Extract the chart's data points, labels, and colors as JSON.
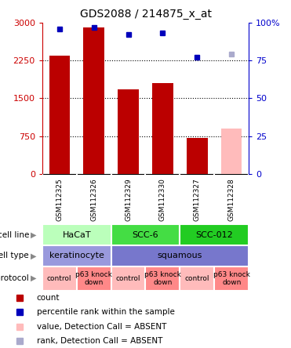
{
  "title": "GDS2088 / 214875_x_at",
  "samples": [
    "GSM112325",
    "GSM112326",
    "GSM112329",
    "GSM112330",
    "GSM112327",
    "GSM112328"
  ],
  "counts": [
    2350,
    2900,
    1680,
    1800,
    720,
    null
  ],
  "percentile_ranks": [
    96,
    97,
    92,
    93,
    77,
    null
  ],
  "absent_value": [
    null,
    null,
    null,
    null,
    null,
    900
  ],
  "absent_rank": [
    null,
    null,
    null,
    null,
    null,
    79
  ],
  "absent_flags": [
    false,
    false,
    false,
    false,
    false,
    true
  ],
  "ylim_left": [
    0,
    3000
  ],
  "ylim_right": [
    0,
    100
  ],
  "yticks_left": [
    0,
    750,
    1500,
    2250,
    3000
  ],
  "yticks_right": [
    0,
    25,
    50,
    75,
    100
  ],
  "cell_line_groups": [
    {
      "label": "HaCaT",
      "start": 0,
      "end": 2,
      "color": "#bbffbb"
    },
    {
      "label": "SCC-6",
      "start": 2,
      "end": 4,
      "color": "#44dd44"
    },
    {
      "label": "SCC-012",
      "start": 4,
      "end": 6,
      "color": "#22cc22"
    }
  ],
  "cell_type_groups": [
    {
      "label": "keratinocyte",
      "start": 0,
      "end": 2,
      "color": "#9999dd"
    },
    {
      "label": "squamous",
      "start": 2,
      "end": 6,
      "color": "#7777cc"
    }
  ],
  "protocol_groups": [
    {
      "label": "control",
      "start": 0,
      "end": 1,
      "color": "#ffbbbb"
    },
    {
      "label": "p63 knock\ndown",
      "start": 1,
      "end": 2,
      "color": "#ff8888"
    },
    {
      "label": "control",
      "start": 2,
      "end": 3,
      "color": "#ffbbbb"
    },
    {
      "label": "p63 knock\ndown",
      "start": 3,
      "end": 4,
      "color": "#ff8888"
    },
    {
      "label": "control",
      "start": 4,
      "end": 5,
      "color": "#ffbbbb"
    },
    {
      "label": "p63 knock\ndown",
      "start": 5,
      "end": 6,
      "color": "#ff8888"
    }
  ],
  "bar_color_present": "#bb0000",
  "bar_color_absent": "#ffbbbb",
  "marker_color_present": "#0000bb",
  "marker_color_absent": "#aaaacc",
  "left_axis_color": "#cc0000",
  "right_axis_color": "#0000cc",
  "legend_items": [
    {
      "color": "#bb0000",
      "label": "count"
    },
    {
      "color": "#0000bb",
      "label": "percentile rank within the sample"
    },
    {
      "color": "#ffbbbb",
      "label": "value, Detection Call = ABSENT"
    },
    {
      "color": "#aaaacc",
      "label": "rank, Detection Call = ABSENT"
    }
  ],
  "n_samples": 6,
  "sample_row_color": "#cccccc",
  "gridline_color": "black",
  "gridline_vals": [
    750,
    1500,
    2250
  ]
}
